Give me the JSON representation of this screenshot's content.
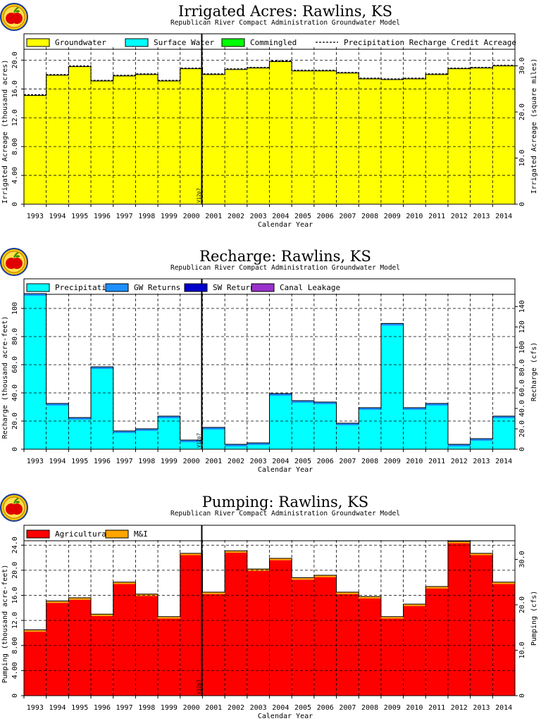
{
  "chart_data": [
    {
      "type": "area",
      "title": "Irrigated Acres: Rawlins, KS",
      "subtitle": "Republican River Compact Administration Groundwater Model",
      "xlabel": "Calendar Year",
      "ylabel": "Irrigated Acreage (thousand acres)",
      "y2label": "Irrigated Acreage (square miles)",
      "categories": [
        "1993",
        "1994",
        "1995",
        "1996",
        "1997",
        "1998",
        "1999",
        "2000",
        "2001",
        "2002",
        "2003",
        "2004",
        "2005",
        "2006",
        "2007",
        "2008",
        "2009",
        "2010",
        "2011",
        "2012",
        "2013",
        "2014"
      ],
      "ylim": [
        0,
        21.7
      ],
      "y2lim": [
        0,
        33.9
      ],
      "yticks": [
        "0",
        "4.00",
        "8.00",
        "12.0",
        "16.0",
        "20.0"
      ],
      "y2ticks": [
        "0",
        "10.0",
        "20.0",
        "30.0"
      ],
      "grid": true,
      "legend_position": "top",
      "series": [
        {
          "name": "Groundwater",
          "color": "#ffff00",
          "values": [
            15.1,
            17.9,
            19.1,
            17.1,
            17.8,
            18.0,
            17.1,
            18.8,
            18.0,
            18.7,
            18.9,
            19.8,
            18.5,
            18.5,
            18.2,
            17.4,
            17.3,
            17.4,
            18.0,
            18.8,
            18.9,
            19.2
          ]
        },
        {
          "name": "Surface Water",
          "color": "#00ffff",
          "values": [
            0,
            0,
            0,
            0,
            0,
            0,
            0,
            0,
            0,
            0,
            0,
            0,
            0,
            0,
            0,
            0,
            0,
            0,
            0,
            0,
            0,
            0
          ]
        },
        {
          "name": "Commingled",
          "color": "#00ff00",
          "values": [
            0,
            0,
            0,
            0,
            0,
            0,
            0,
            0,
            0,
            0,
            0,
            0,
            0,
            0,
            0,
            0,
            0,
            0,
            0,
            0,
            0,
            0
          ]
        },
        {
          "name": "Precipitation Recharge Credit Acreage",
          "style": "dashed-line",
          "values": [
            15.1,
            17.9,
            19.1,
            17.1,
            17.8,
            18.0,
            17.1,
            18.8,
            18.0,
            18.7,
            18.9,
            19.8,
            18.5,
            18.5,
            18.2,
            17.4,
            17.3,
            17.4,
            18.0,
            18.8,
            18.9,
            19.2
          ]
        }
      ],
      "annotation": {
        "label": "V12p7",
        "x": "2001"
      }
    },
    {
      "type": "bar",
      "title": "Recharge: Rawlins, KS",
      "subtitle": "Republican River Compact Administration Groundwater Model",
      "xlabel": "Calendar Year",
      "ylabel": "Recharge (thousand acre-feet)",
      "y2label": "Recharge (cfs)",
      "categories": [
        "1993",
        "1994",
        "1995",
        "1996",
        "1997",
        "1998",
        "1999",
        "2000",
        "2001",
        "2002",
        "2003",
        "2004",
        "2005",
        "2006",
        "2007",
        "2008",
        "2009",
        "2010",
        "2011",
        "2012",
        "2013",
        "2014"
      ],
      "ylim": [
        0,
        110
      ],
      "y2lim": [
        0,
        152
      ],
      "yticks": [
        "0",
        "20.0",
        "40.0",
        "60.0",
        "80.0",
        "100"
      ],
      "y2ticks": [
        "0",
        "20.0",
        "40.0",
        "60.0",
        "80.0",
        "100",
        "120",
        "140"
      ],
      "grid": true,
      "legend_position": "top",
      "series": [
        {
          "name": "Precipitation",
          "color": "#00ffff",
          "values": [
            109,
            31,
            21,
            57,
            11.5,
            13,
            22,
            5,
            14,
            2,
            3,
            38,
            33,
            32,
            17,
            28,
            87.8,
            28,
            31,
            2,
            6,
            22
          ]
        },
        {
          "name": "GW Returns",
          "color": "#1e90ff",
          "values": [
            1.5,
            1.5,
            1.5,
            1.5,
            1.5,
            1.5,
            1.5,
            1.5,
            1.5,
            1.5,
            1.5,
            1.5,
            1.5,
            1.5,
            1.5,
            1.5,
            1.5,
            1.5,
            1.5,
            1.5,
            1.5,
            1.5
          ]
        },
        {
          "name": "SW Returns",
          "color": "#0000cd",
          "values": [
            0,
            0,
            0,
            0,
            0,
            0,
            0,
            0,
            0,
            0,
            0,
            0,
            0,
            0,
            0,
            0,
            0,
            0,
            0,
            0,
            0,
            0
          ]
        },
        {
          "name": "Canal Leakage",
          "color": "#9932cc",
          "values": [
            0,
            0,
            0,
            0,
            0,
            0,
            0,
            0,
            0,
            0,
            0,
            0,
            0,
            0,
            0,
            0,
            0,
            0,
            0,
            0,
            0,
            0
          ]
        }
      ],
      "annotation": {
        "label": "V12p7",
        "x": "2001"
      }
    },
    {
      "type": "bar",
      "title": "Pumping: Rawlins, KS",
      "subtitle": "Republican River Compact Administration Groundwater Model",
      "xlabel": "Calendar Year",
      "ylabel": "Pumping (thousand acre-feet)",
      "y2label": "Pumping (cfs)",
      "categories": [
        "1993",
        "1994",
        "1995",
        "1996",
        "1997",
        "1998",
        "1999",
        "2000",
        "2001",
        "2002",
        "2003",
        "2004",
        "2005",
        "2006",
        "2007",
        "2008",
        "2009",
        "2010",
        "2011",
        "2012",
        "2013",
        "2014"
      ],
      "ylim": [
        0,
        24.7
      ],
      "y2lim": [
        0,
        34.1
      ],
      "yticks": [
        "0",
        "4.00",
        "8.00",
        "12.0",
        "16.0",
        "20.0",
        "24.0"
      ],
      "y2ticks": [
        "0",
        "10.0",
        "20.0",
        "30.0"
      ],
      "grid": true,
      "legend_position": "top",
      "series": [
        {
          "name": "Agricultural",
          "color": "#ff0000",
          "values": [
            10.2,
            14.8,
            15.3,
            12.7,
            17.8,
            15.9,
            12.3,
            22.4,
            16.2,
            22.8,
            19.9,
            21.6,
            18.5,
            18.9,
            16.2,
            15.5,
            12.3,
            14.3,
            17.1,
            24.3,
            22.4,
            17.8
          ]
        },
        {
          "name": "M&I",
          "color": "#ffa500",
          "values": [
            0.3,
            0.3,
            0.3,
            0.3,
            0.3,
            0.3,
            0.3,
            0.3,
            0.3,
            0.3,
            0.3,
            0.3,
            0.3,
            0.3,
            0.3,
            0.3,
            0.3,
            0.3,
            0.3,
            0.3,
            0.3,
            0.3
          ]
        }
      ],
      "annotation": {
        "label": "V12p7",
        "x": "2001"
      }
    }
  ]
}
